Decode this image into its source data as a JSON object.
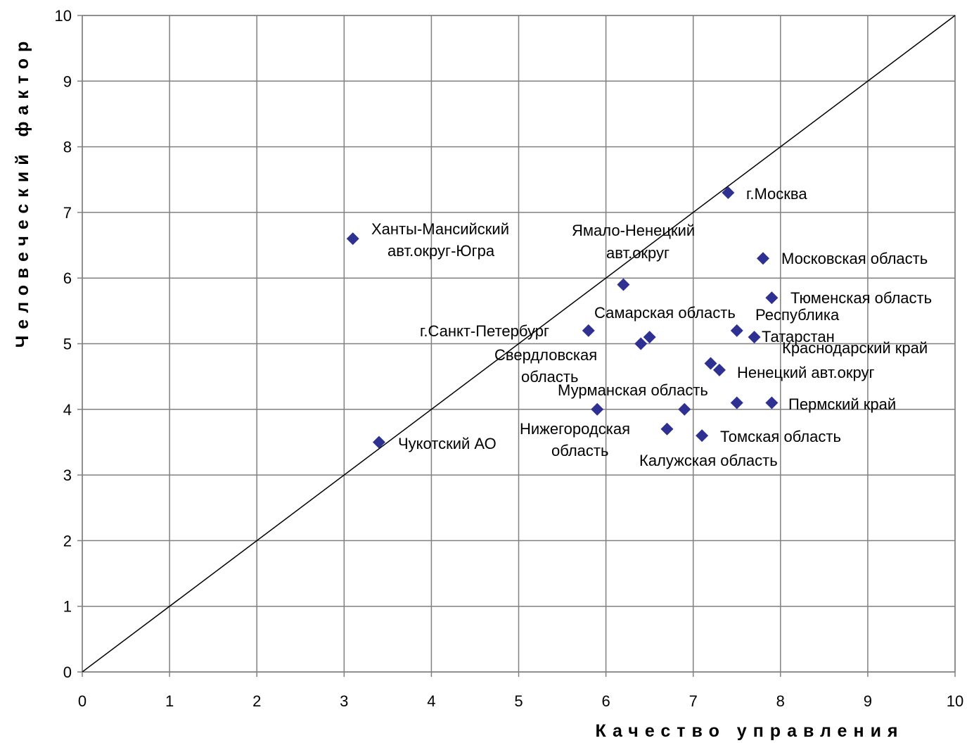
{
  "chart_data": {
    "type": "scatter",
    "xlabel": "Качество управления",
    "ylabel": "Человеческий фактор",
    "xlim": [
      0,
      10
    ],
    "ylim": [
      0,
      10
    ],
    "x_ticks": [
      "0",
      "1",
      "2",
      "3",
      "4",
      "5",
      "6",
      "7",
      "8",
      "9",
      "10"
    ],
    "y_ticks": [
      "0",
      "1",
      "2",
      "3",
      "4",
      "5",
      "6",
      "7",
      "8",
      "9",
      "10"
    ],
    "grid": true,
    "reference_line": {
      "from": [
        0,
        0
      ],
      "to": [
        10,
        10
      ]
    },
    "marker": {
      "shape": "diamond",
      "color": "#2e3192"
    },
    "points": [
      {
        "x": 7.4,
        "y": 7.3
      },
      {
        "x": 3.1,
        "y": 6.6
      },
      {
        "x": 7.8,
        "y": 6.3
      },
      {
        "x": 6.2,
        "y": 5.9
      },
      {
        "x": 7.9,
        "y": 5.7
      },
      {
        "x": 5.8,
        "y": 5.2
      },
      {
        "x": 7.5,
        "y": 5.2
      },
      {
        "x": 6.5,
        "y": 5.1
      },
      {
        "x": 7.7,
        "y": 5.1
      },
      {
        "x": 6.4,
        "y": 5.0
      },
      {
        "x": 7.2,
        "y": 4.7
      },
      {
        "x": 7.3,
        "y": 4.6
      },
      {
        "x": 7.5,
        "y": 4.1
      },
      {
        "x": 7.9,
        "y": 4.1
      },
      {
        "x": 5.9,
        "y": 4.0
      },
      {
        "x": 6.9,
        "y": 4.0
      },
      {
        "x": 6.7,
        "y": 3.7
      },
      {
        "x": 7.1,
        "y": 3.6
      },
      {
        "x": 3.4,
        "y": 3.5
      }
    ],
    "annotations": [
      "г.Москва",
      "Ханты-Мансийский",
      "авт.округ-Югра",
      "Ямало-Ненецкий",
      "авт.округ",
      "Московская область",
      "Тюменская область",
      "Самарская область",
      "Республика",
      "Татарстан",
      "г.Санкт-Петербург",
      "Краснодарский край",
      "Свердловская",
      "область",
      "Ненецкий авт.округ",
      "Мурманская область",
      "Пермский край",
      "Нижегородская",
      "область",
      "Томская область",
      "Чукотский АО",
      "Калужская область"
    ]
  }
}
